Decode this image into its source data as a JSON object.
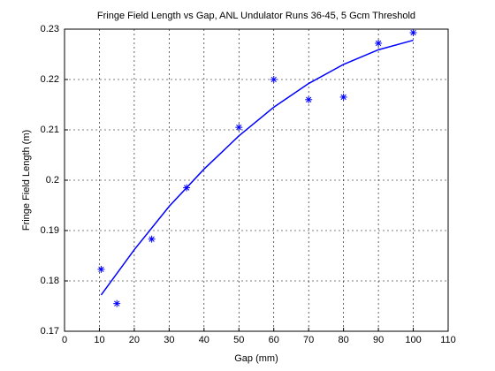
{
  "chart_data": {
    "type": "scatter",
    "title": "Fringe Field Length vs Gap, ANL Undulator Runs 36-45, 5 Gcm Threshold",
    "x_label": "Gap (mm)",
    "y_label": "Fringe Field Length (m)",
    "xlim": [
      0,
      110
    ],
    "xticks": [
      0,
      10,
      20,
      30,
      40,
      50,
      60,
      70,
      80,
      90,
      100,
      110
    ],
    "ylim": [
      0.17,
      0.23
    ],
    "yticks": [
      0.17,
      0.18,
      0.19,
      0.2,
      0.21,
      0.22,
      0.23
    ],
    "grid": true,
    "series": [
      {
        "style": "markers",
        "color": "#0000ff",
        "x": [
          10.5,
          15,
          25,
          35,
          50,
          60,
          70,
          80,
          90,
          100
        ],
        "values": [
          0.1823,
          0.1755,
          0.1883,
          0.1985,
          0.2105,
          0.22,
          0.216,
          0.2165,
          0.2272,
          0.2293
        ]
      },
      {
        "style": "line",
        "color": "#0000ff",
        "x": [
          10.5,
          20,
          30,
          40,
          50,
          60,
          70,
          80,
          90,
          100
        ],
        "values": [
          0.1772,
          0.1862,
          0.1948,
          0.2022,
          0.2088,
          0.2145,
          0.2192,
          0.223,
          0.2259,
          0.2278
        ]
      }
    ]
  }
}
